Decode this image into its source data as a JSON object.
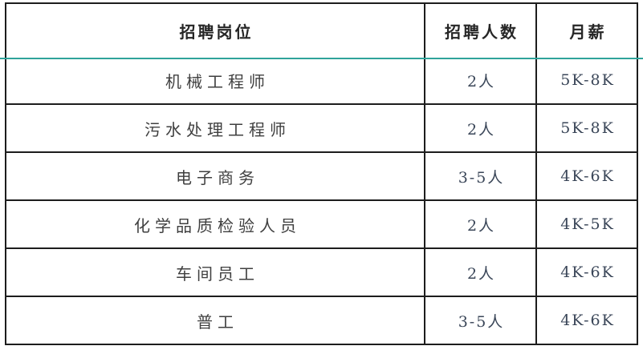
{
  "colors": {
    "accent": "#2fa39a",
    "border": "#1d1d1d",
    "header_text": "#262626",
    "body_text": "#3f3f3f",
    "value_text": "#3a4658"
  },
  "table": {
    "columns": [
      {
        "label": "招聘岗位"
      },
      {
        "label": "招聘人数"
      },
      {
        "label": "月薪"
      }
    ],
    "rows": [
      {
        "position": "机械工程师",
        "headcount": "2人",
        "salary": "5K-8K"
      },
      {
        "position": "污水处理工程师",
        "headcount": "2人",
        "salary": "5K-8K"
      },
      {
        "position": "电子商务",
        "headcount": "3-5人",
        "salary": "4K-6K"
      },
      {
        "position": "化学品质检验人员",
        "headcount": "2人",
        "salary": "4K-5K"
      },
      {
        "position": "车间员工",
        "headcount": "2人",
        "salary": "4K-6K"
      },
      {
        "position": "普工",
        "headcount": "3-5人",
        "salary": "4K-6K"
      }
    ]
  }
}
